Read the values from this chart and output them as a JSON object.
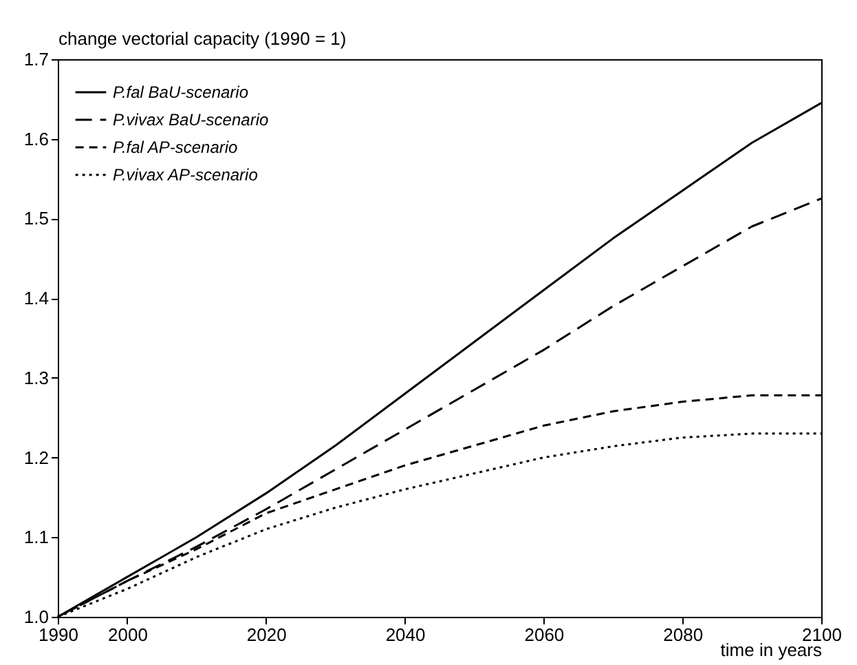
{
  "chart_data": {
    "type": "line",
    "ylabel": "change vectorial capacity (1990 = 1)",
    "xlabel": "time in years",
    "x": [
      1990,
      2000,
      2010,
      2020,
      2030,
      2040,
      2050,
      2060,
      2070,
      2080,
      2090,
      2100
    ],
    "series": [
      {
        "name": "P.fal BaU-scenario",
        "color": "#000000",
        "line_style": "solid",
        "values": [
          1.0,
          1.05,
          1.1,
          1.155,
          1.215,
          1.28,
          1.345,
          1.41,
          1.475,
          1.535,
          1.595,
          1.645
        ]
      },
      {
        "name": "P.vivax BaU-scenario",
        "color": "#000000",
        "line_style": "dashed",
        "values": [
          1.0,
          1.045,
          1.088,
          1.135,
          1.185,
          1.235,
          1.285,
          1.335,
          1.39,
          1.44,
          1.49,
          1.525
        ]
      },
      {
        "name": "P.fal AP-scenario",
        "color": "#000000",
        "line_style": "dashed",
        "values": [
          1.0,
          1.045,
          1.085,
          1.13,
          1.16,
          1.19,
          1.215,
          1.24,
          1.258,
          1.27,
          1.278,
          1.278
        ]
      },
      {
        "name": "P.vivax AP-scenario",
        "color": "#000000",
        "line_style": "dotted",
        "values": [
          1.0,
          1.035,
          1.075,
          1.11,
          1.137,
          1.16,
          1.18,
          1.2,
          1.214,
          1.225,
          1.23,
          1.23
        ]
      }
    ],
    "xlim": [
      1990,
      2100
    ],
    "xticks": [
      1990,
      2000,
      2020,
      2040,
      2060,
      2080,
      2100
    ],
    "ylim": [
      1.0,
      1.7
    ],
    "yticks": [
      {
        "value": 1.0,
        "label": "1.0"
      },
      1.1,
      1.2,
      1.3,
      1.4,
      1.5,
      1.6,
      {
        "value": 1.7,
        "label": "1.7"
      }
    ],
    "grid": false,
    "legend": "top left",
    "marker": "none"
  }
}
